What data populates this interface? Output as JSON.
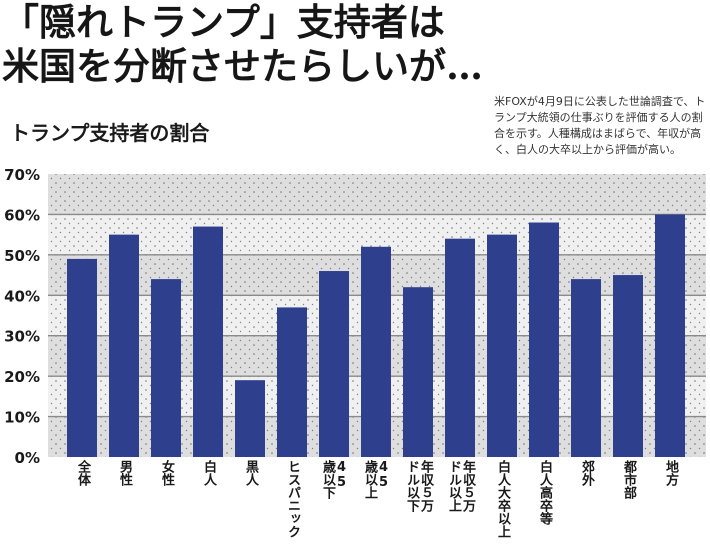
{
  "header": {
    "title_line1": "「隠れトランプ」支持者は",
    "title_line2": "米国を分断させたらしいが…",
    "note": "米FOXが4月9日に公表した世論調査で、トランプ大統領の仕事ぶりを評価する人の割合を示す。人種構成はまばらで、年収が高く、白人の大卒以上から評価が高い。"
  },
  "colors": {
    "bar": "#2e3f8e",
    "band_dark": "#dedede",
    "band_light": "#f0f0f0",
    "gridline": "#8a8a8a"
  },
  "chart_data": {
    "type": "bar",
    "title": "トランプ支持者の割合",
    "xlabel": "",
    "ylabel": "",
    "ylim": [
      0,
      70
    ],
    "yticks": [
      0,
      10,
      20,
      30,
      40,
      50,
      60,
      70
    ],
    "ytick_labels": [
      "0%",
      "10%",
      "20%",
      "30%",
      "40%",
      "50%",
      "60%",
      "70%"
    ],
    "grid": true,
    "categories": [
      "全体",
      "男性",
      "女性",
      "白人",
      "黒人",
      "ヒスパニック",
      "45歳以下",
      "45歳以上",
      "年収5万ドル以下",
      "年収5万ドル以上",
      "白人大卒以上",
      "白人高卒等",
      "郊外",
      "都市部",
      "地方"
    ],
    "category_labels": [
      "全体",
      "男性",
      "女性",
      "白人",
      "黒人",
      "ヒスパニック",
      "45\n歳以下",
      "45\n歳以上",
      "年収５万\nドル以下",
      "年収５万\nドル以上",
      "白人大卒以上",
      "白人高卒等",
      "郊外",
      "都市部",
      "地方"
    ],
    "values": [
      49,
      55,
      44,
      57,
      19,
      37,
      46,
      52,
      42,
      54,
      55,
      58,
      44,
      45,
      60
    ]
  }
}
